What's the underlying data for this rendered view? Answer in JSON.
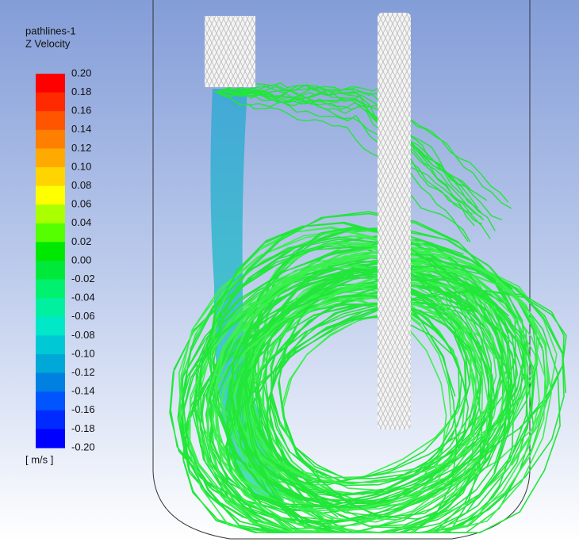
{
  "legend": {
    "title": "pathlines-1",
    "subtitle": "Z Velocity",
    "unit": "[ m/s ]",
    "labels": [
      "0.20",
      "0.18",
      "0.16",
      "0.14",
      "0.12",
      "0.10",
      "0.08",
      "0.06",
      "0.04",
      "0.02",
      "0.00",
      "-0.02",
      "-0.04",
      "-0.06",
      "-0.08",
      "-0.10",
      "-0.12",
      "-0.14",
      "-0.16",
      "-0.18",
      "-0.20"
    ]
  }
}
